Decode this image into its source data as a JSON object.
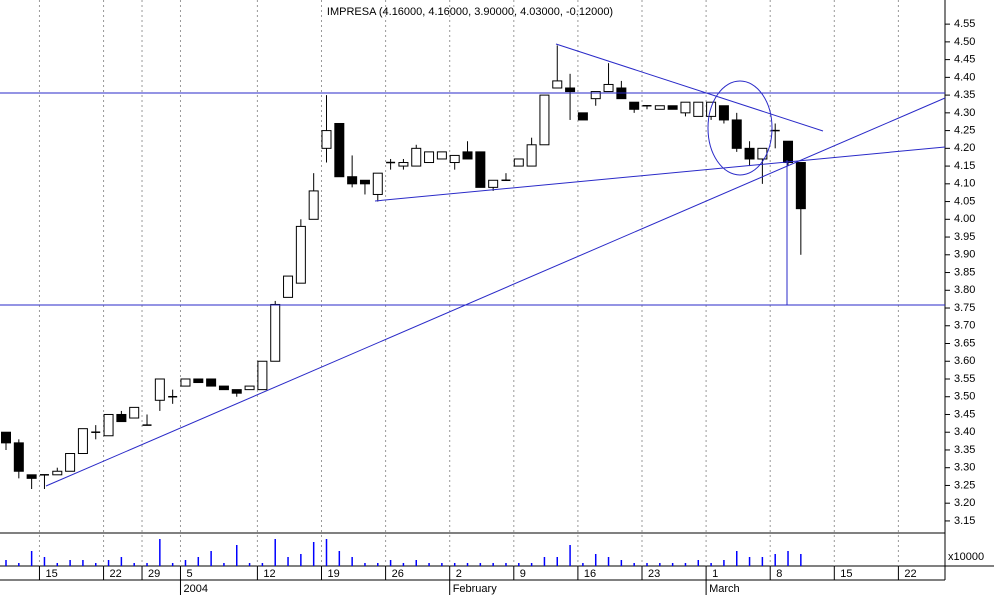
{
  "chart_data": {
    "type": "candlestick",
    "title": "IMPRESA (4.16000, 4.16000, 3.90000, 4.03000, -0.12000)",
    "categories": [
      null,
      null,
      null,
      "15",
      null,
      null,
      null,
      null,
      "22",
      null,
      null,
      "29",
      null,
      null,
      "5",
      null,
      null,
      null,
      null,
      null,
      "12",
      null,
      null,
      null,
      null,
      "19",
      null,
      null,
      null,
      null,
      "26",
      null,
      null,
      null,
      null,
      "2",
      null,
      null,
      null,
      null,
      "9",
      null,
      null,
      null,
      null,
      "16",
      null,
      null,
      null,
      null,
      "23",
      null,
      null,
      null,
      null,
      "1",
      null,
      null,
      null,
      null,
      "8",
      null,
      null,
      null,
      null,
      "15",
      null,
      null,
      null,
      null,
      "22"
    ],
    "period_labels": [
      null,
      null,
      null,
      null,
      null,
      null,
      null,
      null,
      null,
      null,
      null,
      null,
      null,
      null,
      "2004",
      null,
      null,
      null,
      null,
      null,
      null,
      null,
      null,
      null,
      null,
      null,
      null,
      null,
      null,
      null,
      null,
      null,
      null,
      null,
      null,
      "February",
      null,
      null,
      null,
      null,
      null,
      null,
      null,
      null,
      null,
      null,
      null,
      null,
      null,
      null,
      null,
      null,
      null,
      null,
      null,
      "March",
      null,
      null,
      null,
      null,
      null,
      null,
      null,
      null,
      null,
      null,
      null,
      null,
      null,
      null,
      null
    ],
    "open": [
      3.4,
      3.37,
      3.28,
      3.28,
      3.28,
      3.29,
      3.34,
      3.4,
      3.39,
      3.45,
      3.44,
      3.42,
      3.49,
      3.5,
      3.53,
      3.55,
      3.55,
      3.53,
      3.52,
      3.52,
      3.52,
      3.6,
      3.78,
      3.82,
      4.0,
      4.2,
      4.27,
      4.12,
      4.11,
      4.07,
      4.16,
      4.15,
      4.15,
      4.16,
      4.17,
      4.16,
      4.19,
      4.19,
      4.09,
      4.11,
      4.15,
      4.15,
      4.21,
      4.37,
      4.37,
      4.3,
      4.34,
      4.36,
      4.37,
      4.33,
      4.32,
      4.31,
      4.32,
      4.3,
      4.29,
      4.29,
      4.32,
      4.28,
      4.2,
      4.17,
      4.25,
      4.22,
      4.16,
      null,
      null,
      null,
      null,
      null,
      null,
      null,
      null
    ],
    "high": [
      3.4,
      3.38,
      3.28,
      3.28,
      3.3,
      3.34,
      3.41,
      3.42,
      3.45,
      3.46,
      3.47,
      3.45,
      3.55,
      3.52,
      3.55,
      3.55,
      3.55,
      3.53,
      3.52,
      3.53,
      3.6,
      3.77,
      3.84,
      4.0,
      4.13,
      4.35,
      4.27,
      4.18,
      4.11,
      4.13,
      4.17,
      4.17,
      4.21,
      4.19,
      4.19,
      4.18,
      4.22,
      4.19,
      4.11,
      4.13,
      4.17,
      4.23,
      4.35,
      4.49,
      4.41,
      4.3,
      4.36,
      4.44,
      4.39,
      4.33,
      4.32,
      4.32,
      4.32,
      4.33,
      4.33,
      4.33,
      4.32,
      4.3,
      4.22,
      4.2,
      4.27,
      4.22,
      4.16,
      null,
      null,
      null,
      null,
      null,
      null,
      null,
      null
    ],
    "low": [
      3.35,
      3.27,
      3.24,
      3.24,
      3.28,
      3.29,
      3.34,
      3.38,
      3.39,
      3.43,
      3.44,
      3.42,
      3.46,
      3.48,
      3.53,
      3.54,
      3.53,
      3.52,
      3.5,
      3.52,
      3.52,
      3.6,
      3.78,
      3.82,
      4.0,
      4.16,
      4.12,
      4.09,
      4.07,
      4.05,
      4.14,
      4.14,
      4.15,
      4.16,
      4.17,
      4.14,
      4.17,
      4.09,
      4.08,
      4.11,
      4.15,
      4.15,
      4.21,
      4.37,
      4.28,
      4.28,
      4.32,
      4.36,
      4.34,
      4.3,
      4.31,
      4.31,
      4.31,
      4.29,
      4.29,
      4.28,
      4.27,
      4.19,
      4.15,
      4.1,
      4.2,
      4.15,
      3.9,
      null,
      null,
      null,
      null,
      null,
      null,
      null,
      null
    ],
    "close": [
      3.37,
      3.29,
      3.27,
      3.28,
      3.29,
      3.34,
      3.41,
      3.4,
      3.45,
      3.43,
      3.47,
      3.42,
      3.55,
      3.5,
      3.55,
      3.54,
      3.53,
      3.52,
      3.51,
      3.53,
      3.6,
      3.76,
      3.84,
      3.98,
      4.08,
      4.25,
      4.12,
      4.1,
      4.1,
      4.13,
      4.16,
      4.16,
      4.2,
      4.19,
      4.19,
      4.18,
      4.17,
      4.09,
      4.11,
      4.11,
      4.17,
      4.21,
      4.35,
      4.39,
      4.36,
      4.28,
      4.36,
      4.38,
      4.34,
      4.31,
      4.32,
      4.32,
      4.31,
      4.33,
      4.33,
      4.33,
      4.28,
      4.2,
      4.17,
      4.2,
      4.25,
      4.16,
      4.03,
      null,
      null,
      null,
      null,
      null,
      null,
      null,
      null
    ],
    "volume": [
      2,
      1,
      5,
      3,
      1,
      2,
      2,
      1,
      2,
      3,
      1,
      1,
      9,
      1,
      2,
      3,
      5,
      1,
      7,
      1,
      1,
      9,
      3,
      4,
      8,
      9,
      5,
      3,
      1,
      1,
      2,
      1,
      2,
      1,
      1,
      1,
      1,
      1,
      1,
      1,
      1,
      1,
      3,
      3,
      7,
      1,
      4,
      3,
      2,
      1,
      1,
      1,
      1,
      1,
      2,
      1,
      2,
      5,
      3,
      3,
      4,
      5,
      4,
      null,
      null,
      null,
      null,
      null,
      null,
      null,
      null
    ],
    "volume_label": "x10000",
    "volume_ylim": [
      0,
      10
    ],
    "color": "#0000ff",
    "ylim": [
      3.116,
      4.618
    ],
    "yticks": [
      4.55,
      {
        "value": 4.5,
        "label": "4.50"
      },
      4.45,
      {
        "value": 4.4,
        "label": "4.40"
      },
      4.35,
      {
        "value": 4.3,
        "label": "4.30"
      },
      4.25,
      {
        "value": 4.2,
        "label": "4.20"
      },
      4.15,
      {
        "value": 4.1,
        "label": "4.10"
      },
      4.05,
      {
        "value": 4,
        "label": "4.00"
      },
      3.95,
      {
        "value": 3.9,
        "label": "3.90"
      },
      3.85,
      {
        "value": 3.8,
        "label": "3.80"
      },
      3.75,
      {
        "value": 3.7,
        "label": "3.70"
      },
      3.65,
      {
        "value": 3.6,
        "label": "3.60"
      },
      3.55,
      {
        "value": 3.5,
        "label": "3.50"
      },
      3.45,
      {
        "value": 3.4,
        "label": "3.40"
      },
      3.35,
      {
        "value": 3.3,
        "label": "3.30"
      },
      3.25,
      {
        "value": 3.2,
        "label": "3.20"
      },
      3.15
    ]
  }
}
